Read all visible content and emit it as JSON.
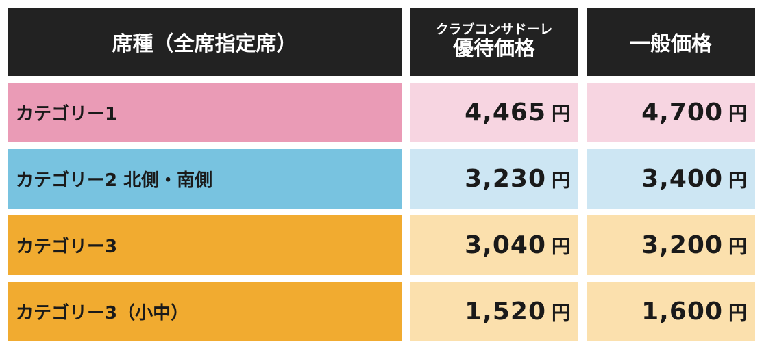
{
  "header": {
    "seat_type": "席種（全席指定席）",
    "member_small": "クラブコンサドーレ",
    "member_big": "優待価格",
    "general": "一般価格"
  },
  "unit": "円",
  "rows": [
    {
      "category": "カテゴリー1",
      "member_price": "4,465",
      "general_price": "4,700"
    },
    {
      "category": "カテゴリー2 北側・南側",
      "member_price": "3,230",
      "general_price": "3,400"
    },
    {
      "category": "カテゴリー3",
      "member_price": "3,040",
      "general_price": "3,200"
    },
    {
      "category": "カテゴリー3（小中）",
      "member_price": "1,520",
      "general_price": "1,600"
    }
  ],
  "colors": {
    "header_bg": "#222222",
    "category1": "#ea9bb6",
    "price1": "#f7d5e1",
    "category2": "#78c3e0",
    "price2": "#cde6f3",
    "category3": "#f1ab30",
    "price3": "#fbe0ad"
  }
}
